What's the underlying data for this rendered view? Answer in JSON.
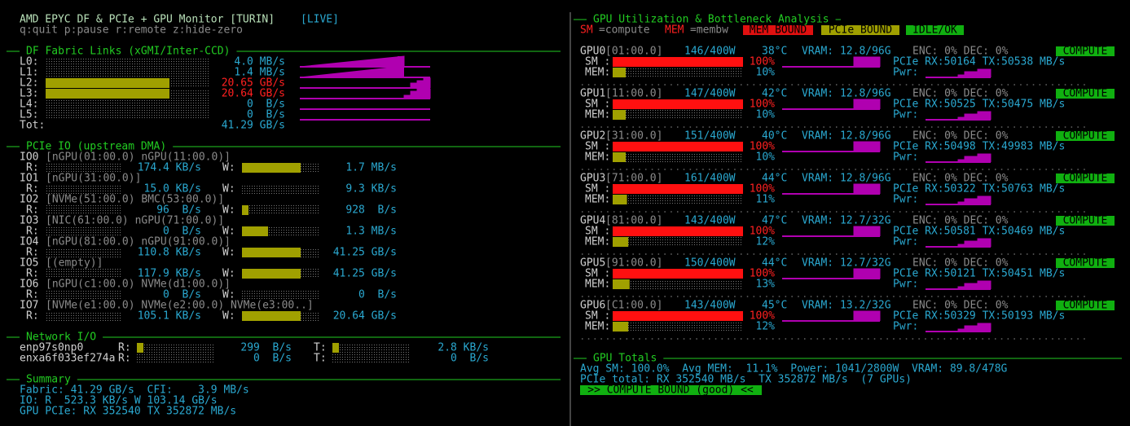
{
  "header": {
    "title": "AMD EPYC DF & PCIe + GPU Monitor [TURIN]",
    "status": "[LIVE]",
    "keys": "q:quit p:pause r:remote z:hide-zero"
  },
  "df_links": {
    "title": "DF Fabric Links (xGMI/Inter-CCD)",
    "links": [
      {
        "label": "L0:",
        "value": "4.0 MB/s",
        "color": "#2aa8d0"
      },
      {
        "label": "L1:",
        "value": "1.4 MB/s",
        "color": "#2aa8d0"
      },
      {
        "label": "L2:",
        "value": "20.65 GB/s",
        "color": "#ff2020"
      },
      {
        "label": "L3:",
        "value": "20.64 GB/s",
        "color": "#ff2020"
      },
      {
        "label": "L4:",
        "value": "0  B/s",
        "color": "#2aa8d0"
      },
      {
        "label": "L5:",
        "value": "0  B/s",
        "color": "#2aa8d0"
      }
    ],
    "total_label": "Tot:",
    "total": "41.29 GB/s"
  },
  "pcie_io": {
    "title": "PCIe IO (upstream DMA)",
    "r_label": "R:",
    "w_label": "W:",
    "ports": [
      {
        "name": "IO0",
        "devices": "[nGPU(01:00.0) nGPU(11:00.0)]",
        "r": "174.4 KB/s",
        "w": "1.7 MB/s"
      },
      {
        "name": "IO1",
        "devices": "[nGPU(31:00.0)]",
        "r": "15.0 KB/s",
        "w": "9.3 KB/s"
      },
      {
        "name": "IO2",
        "devices": "[NVMe(51:00.0) BMC(53:00.0)]",
        "r": "96  B/s",
        "w": "928  B/s"
      },
      {
        "name": "IO3",
        "devices": "[NIC(61:00.0) nGPU(71:00.0)]",
        "r": "0  B/s",
        "w": "1.3 MB/s"
      },
      {
        "name": "IO4",
        "devices": "[nGPU(81:00.0) nGPU(91:00.0)]",
        "r": "110.8 KB/s",
        "w": "41.25 GB/s"
      },
      {
        "name": "IO5",
        "devices": "[(empty)]",
        "r": "117.9 KB/s",
        "w": "41.25 GB/s"
      },
      {
        "name": "IO6",
        "devices": "[nGPU(c1:00.0) NVMe(d1:00.0)]",
        "r": "0  B/s",
        "w": "0  B/s"
      },
      {
        "name": "IO7",
        "devices": "[NVMe(e1:00.0) NVMe(e2:00.0) NVMe(e3:00..]",
        "r": "105.1 KB/s",
        "w": "20.64 GB/s"
      }
    ]
  },
  "network": {
    "title": "Network I/O",
    "r_label": "R:",
    "t_label": "T:",
    "interfaces": [
      {
        "name": "enp97s0np0",
        "r": "299  B/s",
        "t": "2.8 KB/s"
      },
      {
        "name": "enxa6f033ef274a",
        "r": "0  B/s",
        "t": "0  B/s"
      }
    ]
  },
  "summary": {
    "title": "Summary",
    "lines": [
      "Fabric: 41.29 GB/s  CFI:    3.9 MB/s",
      "IO: R  523.3 KB/s W 103.14 GB/s",
      "GPU PCIe: RX 352540 TX 352872 MB/s"
    ]
  },
  "gpu_panel": {
    "title": "GPU Utilization & Bottleneck Analysis",
    "legend": {
      "sm": "SM",
      "sm_desc": "=compute",
      "mem": "MEM",
      "mem_desc": "=membw",
      "states": [
        "MEM BOUND",
        "PCIe BOUND",
        "IDLE/OK"
      ]
    },
    "sm_label": "SM :",
    "mem_label": "MEM:",
    "pwr_label": "Pwr:",
    "gpus": [
      {
        "name": "GPU0",
        "bus": "[01:00.0]",
        "power": "146/400W",
        "temp": "38°C",
        "vram": "VRAM: 12.8/96G",
        "codec": "ENC: 0% DEC: 0%",
        "state": "COMPUTE",
        "sm": "100%",
        "mem": "10%",
        "pcie": "PCIe RX:50164 TX:50538 MB/s"
      },
      {
        "name": "GPU1",
        "bus": "[11:00.0]",
        "power": "147/400W",
        "temp": "42°C",
        "vram": "VRAM: 12.8/96G",
        "codec": "ENC: 0% DEC: 0%",
        "state": "COMPUTE",
        "sm": "100%",
        "mem": "10%",
        "pcie": "PCIe RX:50525 TX:50475 MB/s"
      },
      {
        "name": "GPU2",
        "bus": "[31:00.0]",
        "power": "151/400W",
        "temp": "40°C",
        "vram": "VRAM: 12.8/96G",
        "codec": "ENC: 0% DEC: 0%",
        "state": "COMPUTE",
        "sm": "100%",
        "mem": "10%",
        "pcie": "PCIe RX:50498 TX:49983 MB/s"
      },
      {
        "name": "GPU3",
        "bus": "[71:00.0]",
        "power": "161/400W",
        "temp": "44°C",
        "vram": "VRAM: 12.8/96G",
        "codec": "ENC: 0% DEC: 0%",
        "state": "COMPUTE",
        "sm": "100%",
        "mem": "11%",
        "pcie": "PCIe RX:50322 TX:50763 MB/s"
      },
      {
        "name": "GPU4",
        "bus": "[81:00.0]",
        "power": "143/400W",
        "temp": "47°C",
        "vram": "VRAM: 12.7/32G",
        "codec": "ENC: 0% DEC: 0%",
        "state": "COMPUTE",
        "sm": "100%",
        "mem": "12%",
        "pcie": "PCIe RX:50581 TX:50469 MB/s"
      },
      {
        "name": "GPU5",
        "bus": "[91:00.0]",
        "power": "150/400W",
        "temp": "44°C",
        "vram": "VRAM: 12.7/32G",
        "codec": "ENC: 0% DEC: 0%",
        "state": "COMPUTE",
        "sm": "100%",
        "mem": "13%",
        "pcie": "PCIe RX:50121 TX:50451 MB/s"
      },
      {
        "name": "GPU6",
        "bus": "[C1:00.0]",
        "power": "143/400W",
        "temp": "45°C",
        "vram": "VRAM: 13.2/32G",
        "codec": "ENC: 0% DEC: 0%",
        "state": "COMPUTE",
        "sm": "100%",
        "mem": "12%",
        "pcie": "PCIe RX:50329 TX:50193 MB/s"
      }
    ]
  },
  "gpu_totals": {
    "title": "GPU Totals",
    "lines": [
      "Avg SM: 100.0%  Avg MEM:  11.1%  Power: 1041/2800W  VRAM: 89.8/478G",
      "PCIe total: RX 352540 MB/s  TX 352872 MB/s  (7 GPUs)"
    ],
    "verdict": ">> COMPUTE BOUND (good) <<"
  }
}
